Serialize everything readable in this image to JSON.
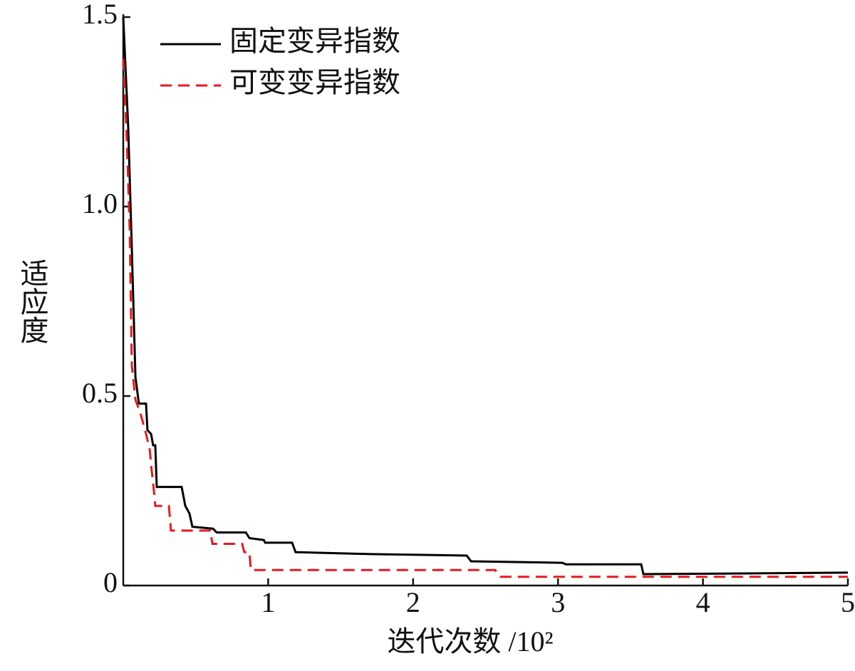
{
  "chart_data": {
    "type": "line",
    "x_label": "迭代次数 /10²",
    "y_label": "适应度",
    "xlim": [
      0,
      5
    ],
    "ylim": [
      0,
      1.5
    ],
    "xticks": [
      1,
      2,
      3,
      4,
      5
    ],
    "yticks": [
      0,
      0.5,
      {
        "value": 1.0,
        "label": "1.0"
      },
      1.5
    ],
    "grid": false,
    "legend": "upper-left",
    "series": [
      {
        "name": "固定变异指数",
        "color": "#000000",
        "dash": "solid",
        "x": [
          0,
          0.034,
          0.059,
          0.084,
          0.108,
          0.157,
          0.167,
          0.192,
          0.206,
          0.221,
          0.231,
          0.403,
          0.428,
          0.457,
          0.477,
          0.62,
          0.644,
          0.846,
          0.871,
          0.97,
          0.979,
          1.165,
          1.189,
          1.706,
          2.37,
          2.4,
          3.03,
          3.054,
          3.574,
          3.589,
          5
        ],
        "values": [
          1.5,
          1.21,
          0.89,
          0.55,
          0.48,
          0.48,
          0.41,
          0.4,
          0.37,
          0.37,
          0.26,
          0.26,
          0.21,
          0.19,
          0.155,
          0.15,
          0.14,
          0.14,
          0.125,
          0.12,
          0.113,
          0.113,
          0.088,
          0.083,
          0.079,
          0.064,
          0.06,
          0.056,
          0.056,
          0.03,
          0.034
        ]
      },
      {
        "name": "可变变异指数",
        "color": "#e8191c",
        "dash": "dashed",
        "x": [
          0,
          0.025,
          0.044,
          0.059,
          0.084,
          0.118,
          0.157,
          0.182,
          0.197,
          0.206,
          0.221,
          0.315,
          0.329,
          0.6,
          0.615,
          0.82,
          0.835,
          0.87,
          0.88,
          2.566,
          2.6,
          5
        ],
        "values": [
          1.39,
          1.17,
          0.94,
          0.58,
          0.49,
          0.455,
          0.4,
          0.36,
          0.3,
          0.27,
          0.21,
          0.21,
          0.145,
          0.145,
          0.11,
          0.11,
          0.088,
          0.088,
          0.041,
          0.041,
          0.023,
          0.023
        ]
      }
    ]
  }
}
